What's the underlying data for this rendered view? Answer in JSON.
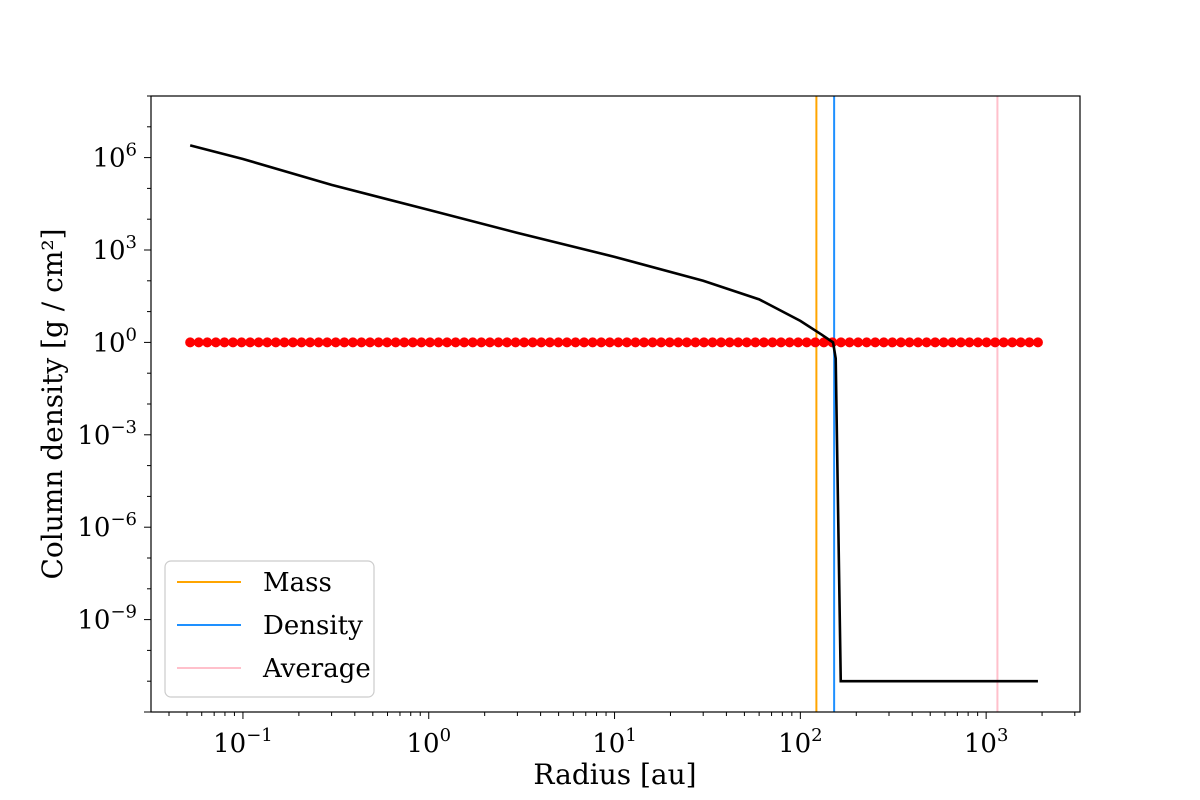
{
  "chart_data": {
    "type": "line",
    "xlabel": "Radius [au]",
    "ylabel": "Column density [g / cm²]",
    "xscale": "log",
    "yscale": "log",
    "xlim": [
      0.032,
      3200
    ],
    "ylim": [
      1e-12,
      100000000.0
    ],
    "x_ticks": [
      {
        "value": 0.1,
        "base": "10",
        "exp": "−1"
      },
      {
        "value": 1,
        "base": "10",
        "exp": "0"
      },
      {
        "value": 10,
        "base": "10",
        "exp": "1"
      },
      {
        "value": 100,
        "base": "10",
        "exp": "2"
      },
      {
        "value": 1000,
        "base": "10",
        "exp": "3"
      }
    ],
    "y_ticks": [
      {
        "value": 1000000.0,
        "base": "10",
        "exp": "6"
      },
      {
        "value": 1000.0,
        "base": "10",
        "exp": "3"
      },
      {
        "value": 1,
        "base": "10",
        "exp": "0"
      },
      {
        "value": 0.001,
        "base": "10",
        "exp": "−3"
      },
      {
        "value": 1e-06,
        "base": "10",
        "exp": "−6"
      },
      {
        "value": 1e-09,
        "base": "10",
        "exp": "−9"
      }
    ],
    "profile": {
      "color": "#000000",
      "x": [
        0.052,
        0.1,
        0.3,
        1,
        3,
        10,
        30,
        60,
        100,
        130,
        150,
        155,
        165,
        200,
        500,
        1000,
        1900
      ],
      "y": [
        2500000,
        900000,
        130000,
        20000,
        3600,
        600,
        100,
        25,
        5,
        1.8,
        1.0,
        0.3,
        1e-11,
        1e-11,
        1e-11,
        1e-11,
        1e-11
      ]
    },
    "markers": {
      "color": "#ff0000",
      "x_start": 0.052,
      "x_end": 1900,
      "count": 100,
      "y": 1
    },
    "vlines": [
      {
        "name": "Mass",
        "x": 122,
        "color": "#ffa500"
      },
      {
        "name": "Density",
        "x": 152,
        "color": "#1e90ff"
      },
      {
        "name": "Average",
        "x": 1150,
        "color": "#ffc0cb"
      }
    ],
    "legend": {
      "placement": "lower-left",
      "entries": [
        "Mass",
        "Density",
        "Average"
      ]
    }
  }
}
